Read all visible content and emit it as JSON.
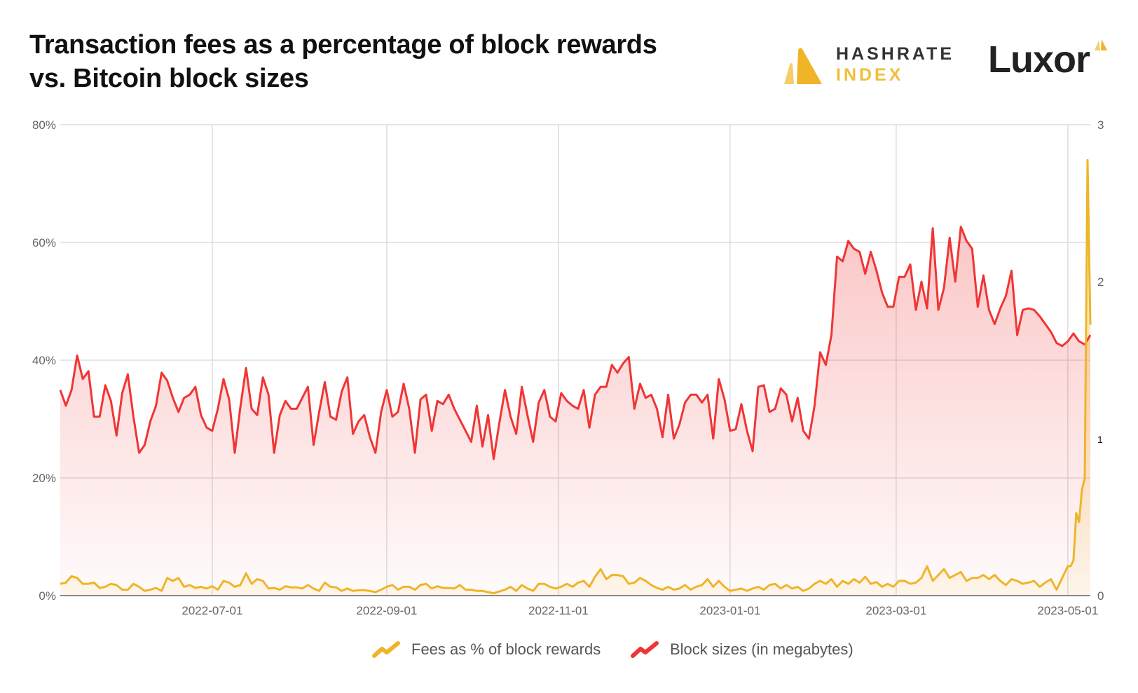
{
  "title": {
    "line1": "Transaction fees as a percentage of block rewards",
    "line2": "vs. Bitcoin block sizes"
  },
  "logos": {
    "hashrate_index": {
      "line1": "HASHRATE",
      "line2": "INDEX"
    },
    "luxor": "Luxor"
  },
  "colors": {
    "fees": "#F0B429",
    "block_sizes": "#F03535",
    "grid": "#dddddd"
  },
  "chart_data": {
    "type": "line",
    "title": "Transaction fees as a percentage of block rewards vs. Bitcoin block sizes",
    "xlim": [
      "2022-05-08",
      "2023-05-09"
    ],
    "x_ticks": [
      "2022-07-01",
      "2022-09-01",
      "2022-11-01",
      "2023-01-01",
      "2023-03-01",
      "2023-05-01"
    ],
    "y_left": {
      "ylim": [
        0,
        80
      ],
      "ticks": [
        "0%",
        "20%",
        "40%",
        "60%",
        "80%"
      ],
      "tick_values": [
        0,
        20,
        40,
        60,
        80
      ]
    },
    "y_right": {
      "ylim": [
        0,
        3
      ],
      "ticks": [
        "0",
        "1",
        "2",
        "3"
      ],
      "tick_values": [
        0,
        1,
        2,
        3
      ]
    },
    "grid": true,
    "legend_position": "bottom",
    "series": [
      {
        "name": "Fees as % of block rewards",
        "axis": "left",
        "area": true,
        "color": "#F0B429",
        "values": [
          2.0,
          2.2,
          3.3,
          3.0,
          2.0,
          2.0,
          2.2,
          1.3,
          1.5,
          2.0,
          1.8,
          1.0,
          1.0,
          2.0,
          1.5,
          0.8,
          1.0,
          1.3,
          0.8,
          3.0,
          2.5,
          3.0,
          1.5,
          1.8,
          1.3,
          1.5,
          1.2,
          1.6,
          1.0,
          2.5,
          2.2,
          1.5,
          1.8,
          3.8,
          2.0,
          2.8,
          2.5,
          1.2,
          1.3,
          1.0,
          1.6,
          1.4,
          1.4,
          1.2,
          1.8,
          1.2,
          0.8,
          2.2,
          1.5,
          1.4,
          0.8,
          1.2,
          0.8,
          0.9,
          0.9,
          0.8,
          0.6,
          1.0,
          1.5,
          1.8,
          1.0,
          1.5,
          1.5,
          1.0,
          1.8,
          2.0,
          1.2,
          1.6,
          1.3,
          1.3,
          1.2,
          1.8,
          1.0,
          1.0,
          0.8,
          0.8,
          0.6,
          0.4,
          0.7,
          1.0,
          1.5,
          0.8,
          1.8,
          1.2,
          0.8,
          2.0,
          2.0,
          1.5,
          1.2,
          1.5,
          2.0,
          1.5,
          2.2,
          2.5,
          1.5,
          3.2,
          4.5,
          2.8,
          3.5,
          3.5,
          3.3,
          2.0,
          2.2,
          3.0,
          2.5,
          1.8,
          1.3,
          1.0,
          1.5,
          1.0,
          1.2,
          1.8,
          1.0,
          1.5,
          1.8,
          2.8,
          1.5,
          2.5,
          1.5,
          0.8,
          1.0,
          1.2,
          0.8,
          1.2,
          1.5,
          1.0,
          1.8,
          2.0,
          1.2,
          1.8,
          1.2,
          1.5,
          0.8,
          1.2,
          2.0,
          2.5,
          2.0,
          2.8,
          1.5,
          2.5,
          2.0,
          2.8,
          2.2,
          3.2,
          2.0,
          2.3,
          1.5,
          2.0,
          1.5,
          2.5,
          2.5,
          2.0,
          2.2,
          3.0,
          5.0,
          2.5,
          3.5,
          4.5,
          3.0,
          3.5,
          4.0,
          2.5,
          3.0,
          3.0,
          3.5,
          2.8,
          3.5,
          2.5,
          1.8,
          2.8,
          2.5,
          2.0,
          2.2,
          2.5,
          1.5,
          2.2,
          2.8,
          1.0,
          3.0,
          5.0
        ],
        "tail": [
          [
            "2023-05-02",
            5.0
          ],
          [
            "2023-05-03",
            6.0
          ],
          [
            "2023-05-04",
            14.0
          ],
          [
            "2023-05-05",
            12.5
          ],
          [
            "2023-05-06",
            18.0
          ],
          [
            "2023-05-07",
            20.0
          ],
          [
            "2023-05-08",
            74.0
          ],
          [
            "2023-05-09",
            46.0
          ]
        ]
      },
      {
        "name": "Block sizes (in megabytes)",
        "axis": "right",
        "area": true,
        "color": "#F03535",
        "values": [
          1.31,
          1.21,
          1.31,
          1.53,
          1.38,
          1.43,
          1.14,
          1.14,
          1.34,
          1.24,
          1.02,
          1.29,
          1.41,
          1.14,
          0.91,
          0.96,
          1.11,
          1.21,
          1.42,
          1.37,
          1.26,
          1.17,
          1.26,
          1.28,
          1.33,
          1.15,
          1.07,
          1.05,
          1.19,
          1.38,
          1.25,
          0.91,
          1.2,
          1.45,
          1.19,
          1.15,
          1.39,
          1.28,
          0.91,
          1.15,
          1.24,
          1.19,
          1.19,
          1.26,
          1.33,
          0.96,
          1.17,
          1.36,
          1.14,
          1.12,
          1.3,
          1.39,
          1.03,
          1.11,
          1.15,
          1.01,
          0.91,
          1.17,
          1.31,
          1.14,
          1.17,
          1.35,
          1.19,
          0.91,
          1.25,
          1.28,
          1.05,
          1.24,
          1.22,
          1.28,
          1.19,
          1.12,
          1.05,
          0.98,
          1.21,
          0.95,
          1.15,
          0.87,
          1.1,
          1.31,
          1.14,
          1.03,
          1.33,
          1.15,
          0.98,
          1.23,
          1.31,
          1.14,
          1.11,
          1.29,
          1.24,
          1.21,
          1.19,
          1.31,
          1.07,
          1.28,
          1.33,
          1.33,
          1.47,
          1.42,
          1.48,
          1.52,
          1.19,
          1.35,
          1.26,
          1.28,
          1.19,
          1.01,
          1.28,
          1.0,
          1.09,
          1.23,
          1.28,
          1.28,
          1.23,
          1.28,
          1.0,
          1.38,
          1.25,
          1.05,
          1.06,
          1.22,
          1.05,
          0.92,
          1.33,
          1.34,
          1.17,
          1.19,
          1.32,
          1.28,
          1.11,
          1.26,
          1.05,
          1.0,
          1.21,
          1.55,
          1.47,
          1.66,
          2.16,
          2.13,
          2.26,
          2.21,
          2.19,
          2.05,
          2.19,
          2.07,
          1.93,
          1.84,
          1.84,
          2.03,
          2.03,
          2.11,
          1.82,
          2.0,
          1.83,
          2.34,
          1.82,
          1.96,
          2.28,
          2.0,
          2.35,
          2.26,
          2.21,
          1.84,
          2.04,
          1.82,
          1.73,
          1.83,
          1.91,
          2.07,
          1.66,
          1.82,
          1.83,
          1.82,
          1.78,
          1.73,
          1.68,
          1.61,
          1.59,
          1.62,
          1.67,
          1.62,
          1.6,
          1.66
        ]
      }
    ],
    "sampling": "every 2 days from 2022-05-08"
  },
  "legend": {
    "fees": "Fees as % of block rewards",
    "block_sizes": "Block sizes (in megabytes)"
  }
}
